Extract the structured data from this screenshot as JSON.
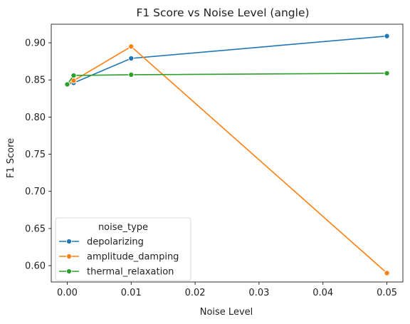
{
  "chart_data": {
    "type": "line",
    "title": "F1 Score vs Noise Level (angle)",
    "xlabel": "Noise Level",
    "ylabel": "F1 Score",
    "xlim": [
      -0.0025,
      0.0525
    ],
    "ylim": [
      0.578,
      0.925
    ],
    "xticks": [
      0.0,
      0.01,
      0.02,
      0.03,
      0.04,
      0.05
    ],
    "xtick_labels": [
      "0.00",
      "0.01",
      "0.02",
      "0.03",
      "0.04",
      "0.05"
    ],
    "yticks": [
      0.6,
      0.65,
      0.7,
      0.75,
      0.8,
      0.85,
      0.9
    ],
    "ytick_labels": [
      "0.60",
      "0.65",
      "0.70",
      "0.75",
      "0.80",
      "0.85",
      "0.90"
    ],
    "grid": false,
    "legend": {
      "title": "noise_type",
      "placement": "lower-left"
    },
    "series": [
      {
        "name": "depolarizing",
        "color": "#1f77b4",
        "x": [
          0.0,
          0.001,
          0.01,
          0.05
        ],
        "y": [
          0.844,
          0.846,
          0.879,
          0.909
        ]
      },
      {
        "name": "amplitude_damping",
        "color": "#ff7f0e",
        "x": [
          0.0,
          0.001,
          0.01,
          0.05
        ],
        "y": [
          0.844,
          0.849,
          0.895,
          0.59
        ]
      },
      {
        "name": "thermal_relaxation",
        "color": "#2ca02c",
        "x": [
          0.0,
          0.001,
          0.01,
          0.05
        ],
        "y": [
          0.844,
          0.856,
          0.857,
          0.859
        ]
      }
    ]
  }
}
